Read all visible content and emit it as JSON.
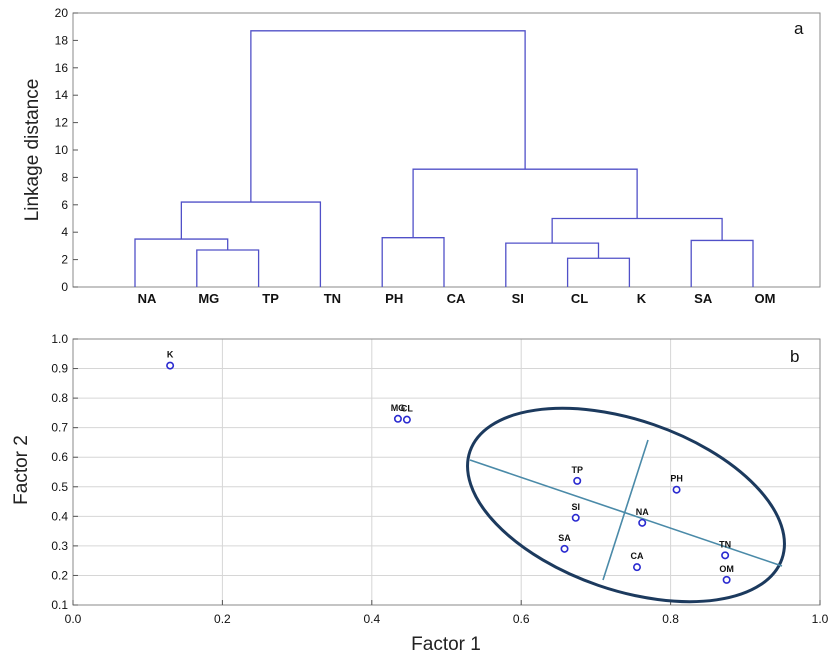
{
  "chart_data": [
    {
      "type": "dendrogram",
      "panel_label": "a",
      "ylabel": "Linkage distance",
      "ylim": [
        0,
        20
      ],
      "yticks": [
        "0",
        "2",
        "4",
        "6",
        "8",
        "10",
        "12",
        "14",
        "16",
        "18",
        "20"
      ],
      "leaves": [
        "NA",
        "MG",
        "TP",
        "TN",
        "PH",
        "CA",
        "SI",
        "CL",
        "K",
        "SA",
        "OM"
      ],
      "merges": [
        {
          "left": "CL",
          "right": "K",
          "height": 2.1
        },
        {
          "left": "MG",
          "right": "TP",
          "height": 2.7
        },
        {
          "left": "SI",
          "right": "(CL,K)",
          "height": 3.2
        },
        {
          "left": "SA",
          "right": "OM",
          "height": 3.4
        },
        {
          "left": "NA",
          "right": "(MG,TP)",
          "height": 3.5
        },
        {
          "left": "PH",
          "right": "CA",
          "height": 3.6
        },
        {
          "left": "(SI,CL,K)",
          "right": "(SA,OM)",
          "height": 5.0
        },
        {
          "left": "(NA,MG,TP)",
          "right": "TN",
          "height": 6.2
        },
        {
          "left": "(PH,CA)",
          "right": "(SI,CL,K,SA,OM)",
          "height": 8.6
        },
        {
          "left": "(NA,MG,TP,TN)",
          "right": "(PH,CA,SI,CL,K,SA,OM)",
          "height": 18.7
        }
      ],
      "color": "#5050c8"
    },
    {
      "type": "scatter",
      "panel_label": "b",
      "xlabel": "Factor 1",
      "ylabel": "Factor 2",
      "xlim": [
        0.0,
        1.0
      ],
      "ylim": [
        0.1,
        1.0
      ],
      "xticks": [
        "0.0",
        "0.2",
        "0.4",
        "0.6",
        "0.8",
        "1.0"
      ],
      "yticks": [
        "0.1",
        "0.2",
        "0.3",
        "0.4",
        "0.5",
        "0.6",
        "0.7",
        "0.8",
        "0.9",
        "1.0"
      ],
      "points": [
        {
          "label": "K",
          "x": 0.13,
          "y": 0.91
        },
        {
          "label": "MG",
          "x": 0.435,
          "y": 0.73
        },
        {
          "label": "CL",
          "x": 0.447,
          "y": 0.727
        },
        {
          "label": "TP",
          "x": 0.675,
          "y": 0.52
        },
        {
          "label": "PH",
          "x": 0.808,
          "y": 0.49
        },
        {
          "label": "SI",
          "x": 0.673,
          "y": 0.395
        },
        {
          "label": "NA",
          "x": 0.762,
          "y": 0.378
        },
        {
          "label": "SA",
          "x": 0.658,
          "y": 0.29
        },
        {
          "label": "TN",
          "x": 0.873,
          "y": 0.268
        },
        {
          "label": "CA",
          "x": 0.755,
          "y": 0.228
        },
        {
          "label": "OM",
          "x": 0.875,
          "y": 0.185
        }
      ],
      "grid": true,
      "marker_color": "#2a2ad0",
      "ellipse_color": "#1c3a5e",
      "ellipse_axis_color": "#4a8aa8"
    }
  ]
}
